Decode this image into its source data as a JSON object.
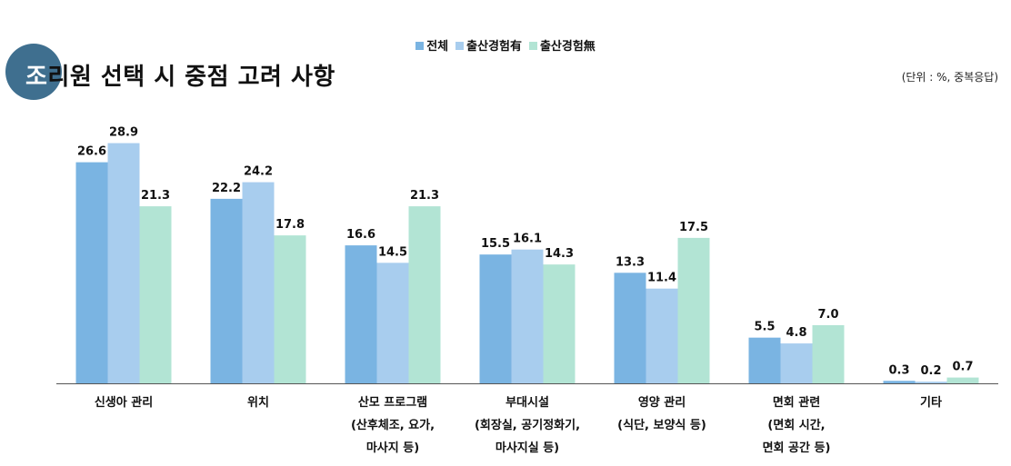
{
  "title": {
    "first_char": "조",
    "rest": "리원 선택 시 중점 고려 사항"
  },
  "unit_note": "(단위 : %, 중복응답)",
  "colors": {
    "title_circle": "#3f6f8f",
    "series": [
      "#7ab4e2",
      "#a8cdee",
      "#b2e4d4"
    ],
    "axis": "#555555"
  },
  "chart_data": {
    "type": "bar",
    "title": "조리원 선택 시 중점 고려 사항",
    "xlabel": "",
    "ylabel": "",
    "ylim": [
      0,
      30
    ],
    "legend_position": "top-center",
    "categories": [
      [
        "신생아 관리"
      ],
      [
        "위치"
      ],
      [
        "산모 프로그램",
        "(산후체조, 요가,",
        "마사지 등)"
      ],
      [
        "부대시설",
        "(회장실, 공기정화기,",
        "마사지실 등)"
      ],
      [
        "영양 관리",
        "(식단, 보양식 등)"
      ],
      [
        "면회 관련",
        "(면회 시간,",
        "면회 공간 등)"
      ],
      [
        "기타"
      ]
    ],
    "series": [
      {
        "name": "전체",
        "values": [
          26.6,
          22.2,
          16.6,
          15.5,
          13.3,
          5.5,
          0.3
        ]
      },
      {
        "name": "출산경험有",
        "values": [
          28.9,
          24.2,
          14.5,
          16.1,
          11.4,
          4.8,
          0.2
        ]
      },
      {
        "name": "출산경험無",
        "values": [
          21.3,
          17.8,
          21.3,
          14.3,
          17.5,
          7.0,
          0.7
        ]
      }
    ]
  }
}
